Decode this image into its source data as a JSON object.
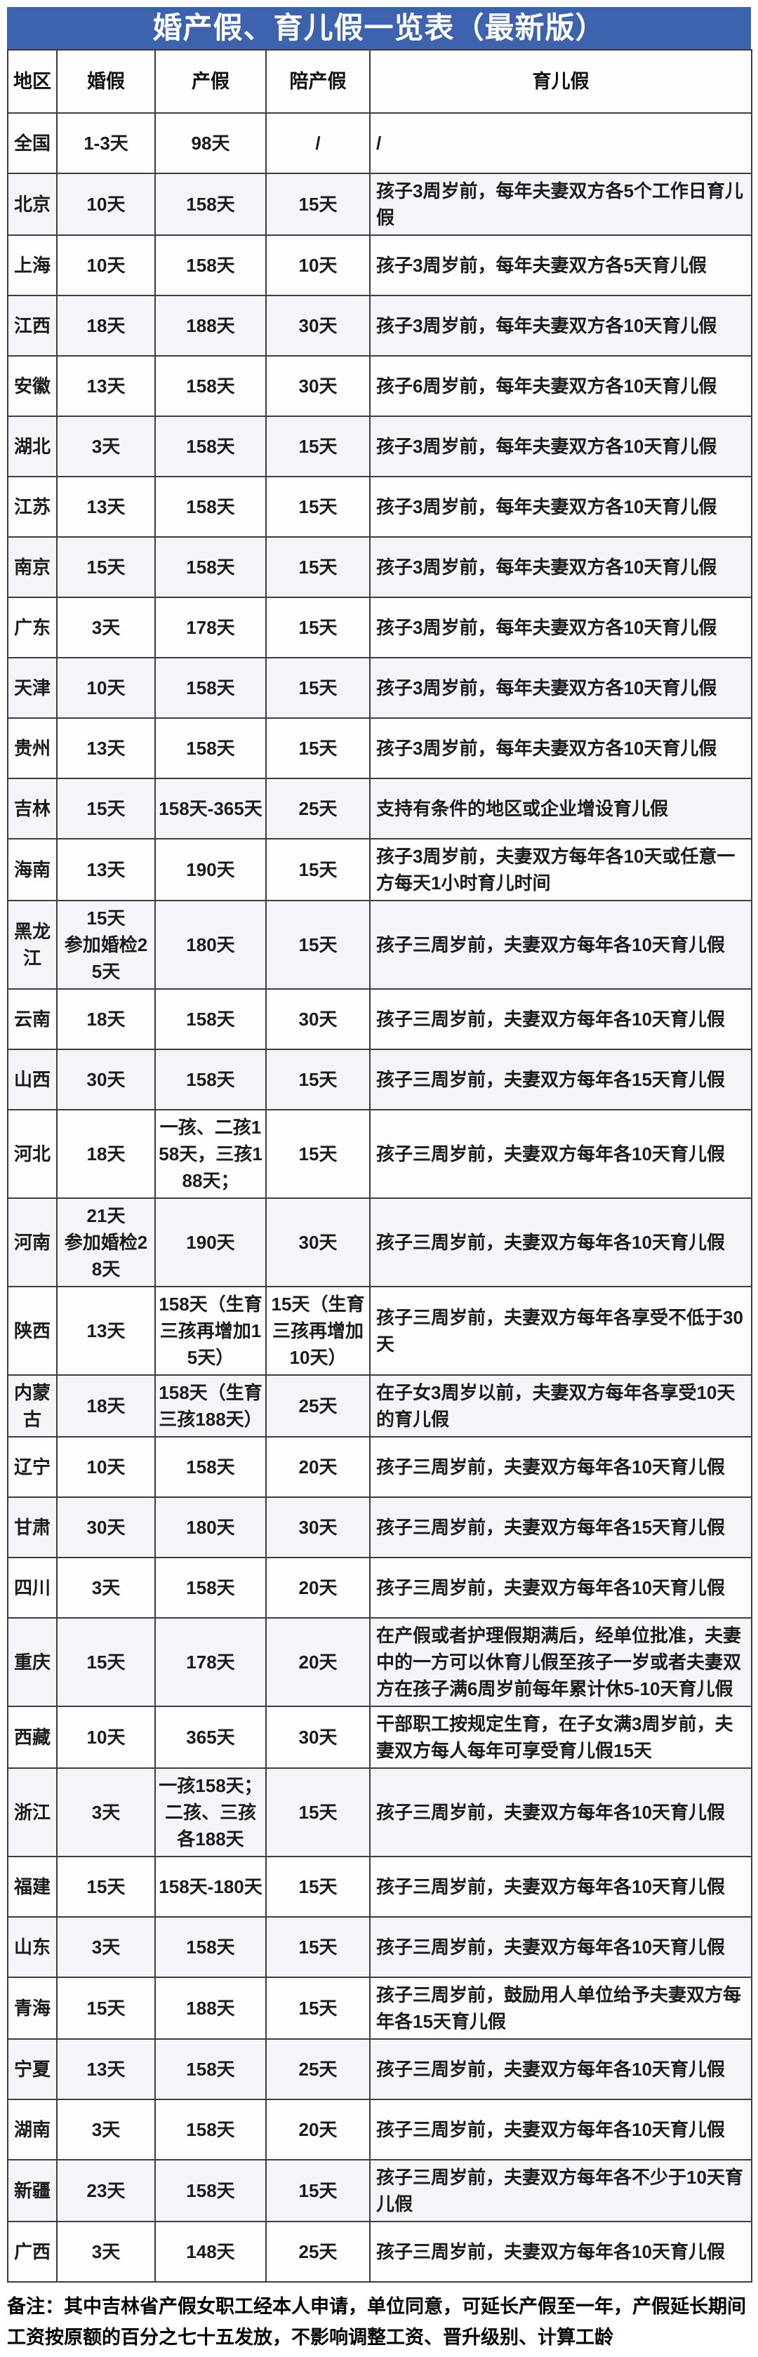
{
  "title": "婚产假、育儿假一览表（最新版）",
  "columns": [
    "地区",
    "婚假",
    "产假",
    "陪产假",
    "育儿假"
  ],
  "rows": [
    [
      "全国",
      "1-3天",
      "98天",
      "/",
      "/"
    ],
    [
      "北京",
      "10天",
      "158天",
      "15天",
      "孩子3周岁前，每年夫妻双方各5个工作日育儿假"
    ],
    [
      "上海",
      "10天",
      "158天",
      "10天",
      "孩子3周岁前，每年夫妻双方各5天育儿假"
    ],
    [
      "江西",
      "18天",
      "188天",
      "30天",
      "孩子3周岁前，每年夫妻双方各10天育儿假"
    ],
    [
      "安徽",
      "13天",
      "158天",
      "30天",
      "孩子6周岁前，每年夫妻双方各10天育儿假"
    ],
    [
      "湖北",
      "3天",
      "158天",
      "15天",
      "孩子3周岁前，每年夫妻双方各10天育儿假"
    ],
    [
      "江苏",
      "13天",
      "158天",
      "15天",
      "孩子3周岁前，每年夫妻双方各10天育儿假"
    ],
    [
      "南京",
      "15天",
      "158天",
      "15天",
      "孩子3周岁前，每年夫妻双方各10天育儿假"
    ],
    [
      "广东",
      "3天",
      "178天",
      "15天",
      "孩子3周岁前，每年夫妻双方各10天育儿假"
    ],
    [
      "天津",
      "10天",
      "158天",
      "15天",
      "孩子3周岁前，每年夫妻双方各10天育儿假"
    ],
    [
      "贵州",
      "13天",
      "158天",
      "15天",
      "孩子3周岁前，每年夫妻双方各10天育儿假"
    ],
    [
      "吉林",
      "15天",
      "158天-365天",
      "25天",
      "支持有条件的地区或企业增设育儿假"
    ],
    [
      "海南",
      "13天",
      "190天",
      "15天",
      "孩子3周岁前，夫妻双方每年各10天或任意一方每天1小时育儿时间"
    ],
    [
      "黑龙江",
      "15天\n参加婚检25天",
      "180天",
      "15天",
      "孩子三周岁前，夫妻双方每年各10天育儿假"
    ],
    [
      "云南",
      "18天",
      "158天",
      "30天",
      "孩子三周岁前，夫妻双方每年各10天育儿假"
    ],
    [
      "山西",
      "30天",
      "158天",
      "15天",
      "孩子三周岁前，夫妻双方每年各15天育儿假"
    ],
    [
      "河北",
      "18天",
      "一孩、二孩158天，三孩188天；",
      "15天",
      "孩子三周岁前，夫妻双方每年各10天育儿假"
    ],
    [
      "河南",
      "21天\n参加婚检28天",
      "190天",
      "30天",
      "孩子三周岁前，夫妻双方每年各10天育儿假"
    ],
    [
      "陕西",
      "13天",
      "158天（生育三孩再增加15天）",
      "15天（生育三孩再增加10天）",
      "孩子三周岁前，夫妻双方每年各享受不低于30天"
    ],
    [
      "内蒙古",
      "18天",
      "158天（生育三孩188天）",
      "25天",
      "在子女3周岁以前，夫妻双方每年各享受10天的育儿假"
    ],
    [
      "辽宁",
      "10天",
      "158天",
      "20天",
      "孩子三周岁前，夫妻双方每年各10天育儿假"
    ],
    [
      "甘肃",
      "30天",
      "180天",
      "30天",
      "孩子三周岁前，夫妻双方每年各15天育儿假"
    ],
    [
      "四川",
      "3天",
      "158天",
      "20天",
      "孩子三周岁前，夫妻双方每年各10天育儿假"
    ],
    [
      "重庆",
      "15天",
      "178天",
      "20天",
      "在产假或者护理假期满后，经单位批准，夫妻中的一方可以休育儿假至孩子一岁或者夫妻双方在孩子满6周岁前每年累计休5-10天育儿假"
    ],
    [
      "西藏",
      "10天",
      "365天",
      "30天",
      "干部职工按规定生育，在子女满3周岁前，夫妻双方每人每年可享受育儿假15天"
    ],
    [
      "浙江",
      "3天",
      "一孩158天；二孩、三孩各188天",
      "15天",
      "孩子三周岁前，夫妻双方每年各10天育儿假"
    ],
    [
      "福建",
      "15天",
      "158天-180天",
      "15天",
      "孩子三周岁前，夫妻双方每年各10天育儿假"
    ],
    [
      "山东",
      "3天",
      "158天",
      "15天",
      "孩子三周岁前，夫妻双方每年各10天育儿假"
    ],
    [
      "青海",
      "15天",
      "188天",
      "15天",
      "孩子三周岁前，鼓励用人单位给予夫妻双方每年各15天育儿假"
    ],
    [
      "宁夏",
      "13天",
      "158天",
      "25天",
      "孩子三周岁前，夫妻双方每年各10天育儿假"
    ],
    [
      "湖南",
      "3天",
      "158天",
      "20天",
      "孩子三周岁前，夫妻双方每年各10天育儿假"
    ],
    [
      "新疆",
      "23天",
      "158天",
      "15天",
      "孩子三周岁前，夫妻双方每年各不少于10天育儿假"
    ],
    [
      "广西",
      "3天",
      "148天",
      "25天",
      "孩子三周岁前，夫妻双方每年各10天育儿假"
    ]
  ],
  "note": "备注：其中吉林省产假女职工经本人申请，单位同意，可延长产假至一年，产假延长期间工资按原额的百分之七十五发放，不影响调整工资、晋升级别、计算工龄",
  "colors": {
    "title_bg": "#3d62ae",
    "title_text": "#ffffff",
    "border": "#3d3d3d",
    "row_alt_bg": "#f3f5f9",
    "row_bg": "#fdfdfe",
    "text": "#1b1b1b"
  }
}
